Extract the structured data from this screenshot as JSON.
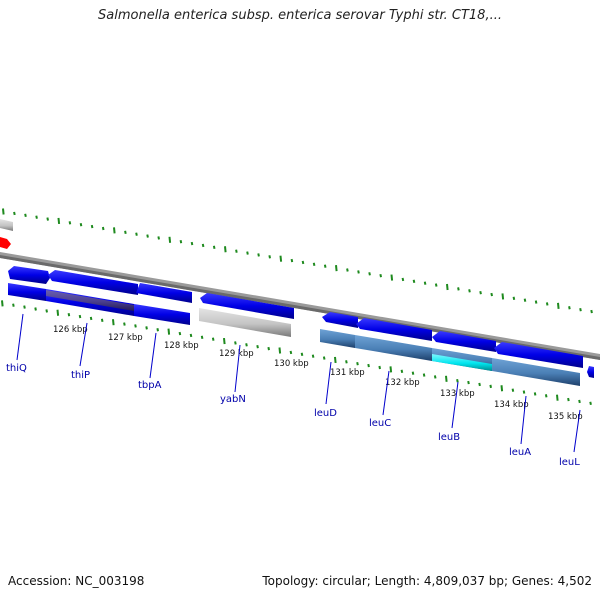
{
  "title": "Salmonella enterica subsp. enterica serovar Typhi str. CT18,...",
  "footer": {
    "accession": "Accession: NC_003198",
    "summary": "Topology: circular; Length: 4,809,037 bp; Genes: 4,502"
  },
  "scale_ticks": [
    "126 kbp",
    "127 kbp",
    "128 kbp",
    "129 kbp",
    "130 kbp",
    "131 kbp",
    "132 kbp",
    "133 kbp",
    "134 kbp",
    "135 kbp"
  ],
  "genes": [
    "thiQ",
    "thiP",
    "tbpA",
    "yabN",
    "leuD",
    "leuC",
    "leuB",
    "leuA",
    "leuL"
  ],
  "colors": {
    "forward_cds": "#0000ee",
    "reverse_cds": "#0000ee",
    "gene_track_blue": "#1a1aee",
    "gene_track_steel": "#4a7fb5",
    "gene_track_gray": "#c8c8c8",
    "gene_track_highlight": "#00e5ee",
    "gene_track_purple": "#4b3f8f",
    "backbone": "#8a8a8a",
    "ticks": "#1e8a1e",
    "marker": "#ff0000",
    "label": "#0000aa"
  }
}
